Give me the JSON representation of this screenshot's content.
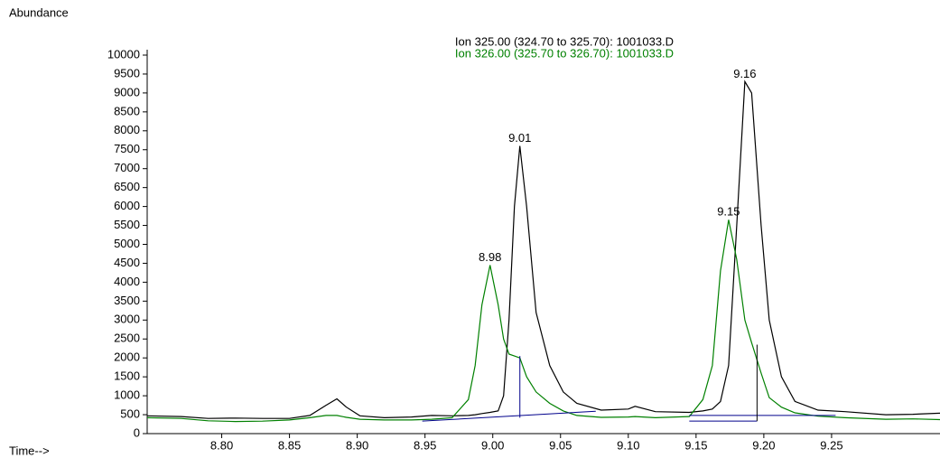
{
  "chart_data": {
    "type": "line",
    "y_axis_label": "Abundance",
    "x_axis_label": "Time-->",
    "xlim": [
      8.745,
      9.33
    ],
    "ylim": [
      0,
      10000
    ],
    "xticks": [
      {
        "value": 8.8,
        "label": "8.80"
      },
      8.85,
      {
        "value": 8.9,
        "label": "8.90"
      },
      8.95,
      {
        "value": 9.0,
        "label": "9.00"
      },
      9.05,
      {
        "value": 9.1,
        "label": "9.10"
      },
      9.15,
      {
        "value": 9.2,
        "label": "9.20"
      },
      9.25
    ],
    "yticks": [
      0,
      500,
      1000,
      1500,
      2000,
      2500,
      3000,
      3500,
      4000,
      4500,
      5000,
      5500,
      6000,
      6500,
      7000,
      7500,
      8000,
      8500,
      9000,
      9500,
      10000
    ],
    "x": [
      8.745,
      8.77,
      8.79,
      8.81,
      8.83,
      8.85,
      8.865,
      8.877,
      8.885,
      8.892,
      8.902,
      8.92,
      8.94,
      8.955,
      8.97,
      8.982,
      8.987,
      8.992,
      8.998,
      9.004,
      9.008,
      9.012,
      9.016,
      9.02,
      9.025,
      9.032,
      9.042,
      9.052,
      9.062,
      9.08,
      9.1,
      9.105,
      9.12,
      9.145,
      9.155,
      9.162,
      9.168,
      9.174,
      9.18,
      9.186,
      9.191,
      9.198,
      9.204,
      9.213,
      9.223,
      9.24,
      9.26,
      9.29,
      9.31,
      9.33
    ],
    "series": [
      {
        "name": "Ion 325.00 (324.70 to 325.70): 1001033.D",
        "color": "#000000",
        "values": [
          470,
          450,
          400,
          410,
          400,
          400,
          480,
          750,
          920,
          700,
          470,
          420,
          440,
          480,
          470,
          480,
          500,
          530,
          560,
          600,
          1000,
          3000,
          6000,
          7600,
          6000,
          3200,
          1800,
          1100,
          800,
          620,
          650,
          720,
          580,
          560,
          600,
          650,
          850,
          1800,
          5500,
          9300,
          9000,
          5500,
          3000,
          1500,
          850,
          620,
          580,
          500,
          510,
          540
        ]
      },
      {
        "name": "Ion 326.00 (325.70 to 326.70): 1001033.D",
        "color": "#008000",
        "values": [
          420,
          400,
          340,
          320,
          330,
          360,
          420,
          480,
          480,
          430,
          380,
          360,
          360,
          380,
          420,
          900,
          1800,
          3400,
          4450,
          3400,
          2500,
          2100,
          2050,
          2000,
          1500,
          1100,
          800,
          600,
          480,
          430,
          440,
          450,
          420,
          450,
          900,
          1800,
          4300,
          5650,
          4600,
          3000,
          2400,
          1600,
          950,
          700,
          550,
          460,
          420,
          380,
          390,
          370
        ]
      }
    ],
    "annotations": [
      {
        "text": "8.98",
        "x": 8.998,
        "y": 4450
      },
      {
        "text": "9.01",
        "x": 9.02,
        "y": 7600
      },
      {
        "text": "9.15",
        "x": 9.174,
        "y": 5650
      },
      {
        "text": "9.16",
        "x": 9.186,
        "y": 9300
      }
    ],
    "integration_lines": [
      {
        "color": "#00008b",
        "points": [
          [
            8.948,
            330
          ],
          [
            9.076,
            590
          ]
        ]
      },
      {
        "color": "#00008b",
        "points": [
          [
            9.02,
            420
          ],
          [
            9.02,
            2050
          ]
        ]
      },
      {
        "color": "#00008b",
        "points": [
          [
            9.145,
            330
          ],
          [
            9.195,
            330
          ]
        ]
      },
      {
        "color": "#00008b",
        "points": [
          [
            9.145,
            480
          ],
          [
            9.253,
            480
          ]
        ]
      },
      {
        "color": "#000000",
        "points": [
          [
            9.195,
            330
          ],
          [
            9.195,
            2350
          ]
        ]
      }
    ]
  }
}
